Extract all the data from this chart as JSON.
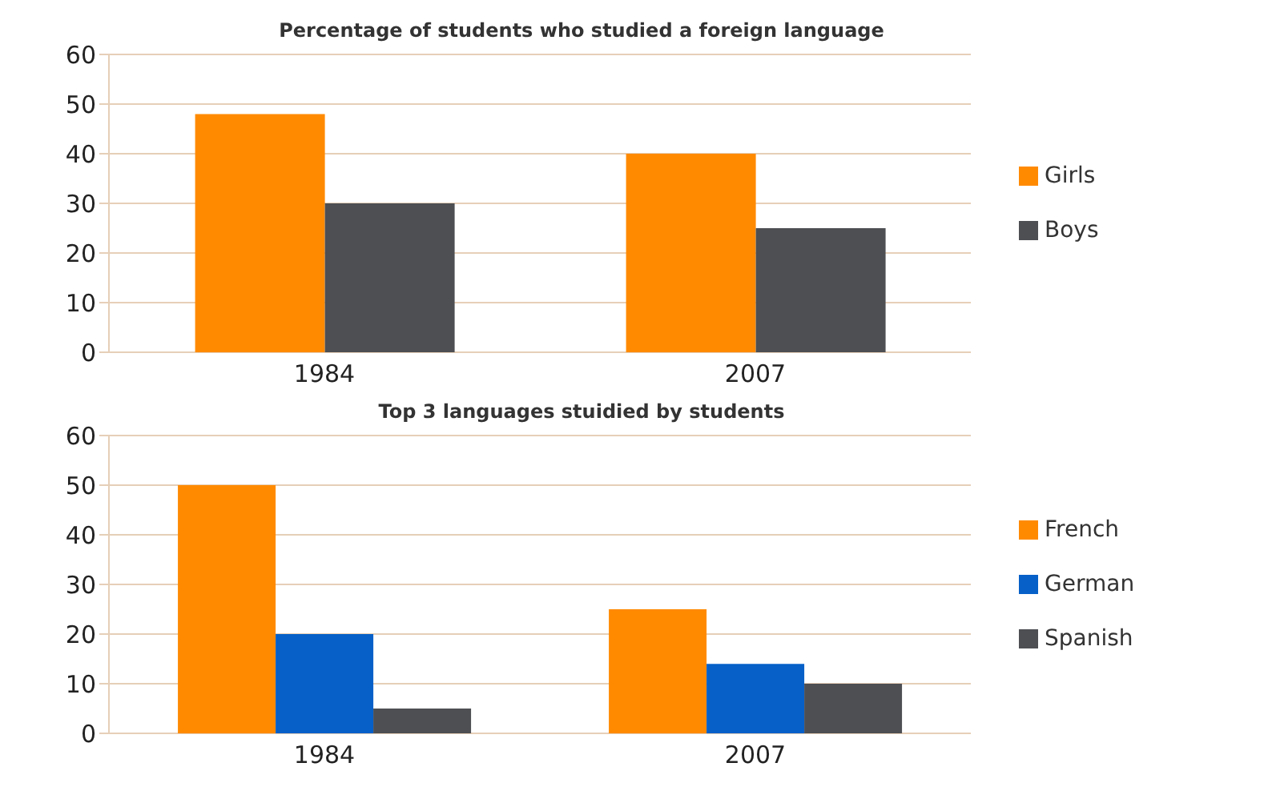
{
  "chart_data": [
    {
      "type": "bar",
      "title": "Percentage of students who studied a foreign language",
      "categories": [
        "1984",
        "2007"
      ],
      "series": [
        {
          "name": "Girls",
          "color": "#ff8a00",
          "values": [
            48,
            40
          ]
        },
        {
          "name": "Boys",
          "color": "#4d4f53",
          "values": [
            30,
            25
          ]
        }
      ],
      "ylim": [
        0,
        60
      ],
      "yticks": [
        0,
        10,
        20,
        30,
        40,
        50,
        60
      ],
      "grid": "y",
      "legend": "right"
    },
    {
      "type": "bar",
      "title": "Top 3 languages stuidied by students",
      "categories": [
        "1984",
        "2007"
      ],
      "series": [
        {
          "name": "French",
          "color": "#ff8a00",
          "values": [
            50,
            25
          ]
        },
        {
          "name": "German",
          "color": "#0660c8",
          "values": [
            20,
            14
          ]
        },
        {
          "name": "Spanish",
          "color": "#4d4f53",
          "values": [
            5,
            10
          ]
        }
      ],
      "ylim": [
        0,
        60
      ],
      "yticks": [
        0,
        10,
        20,
        30,
        40,
        50,
        60
      ],
      "grid": "y",
      "legend": "right"
    }
  ]
}
